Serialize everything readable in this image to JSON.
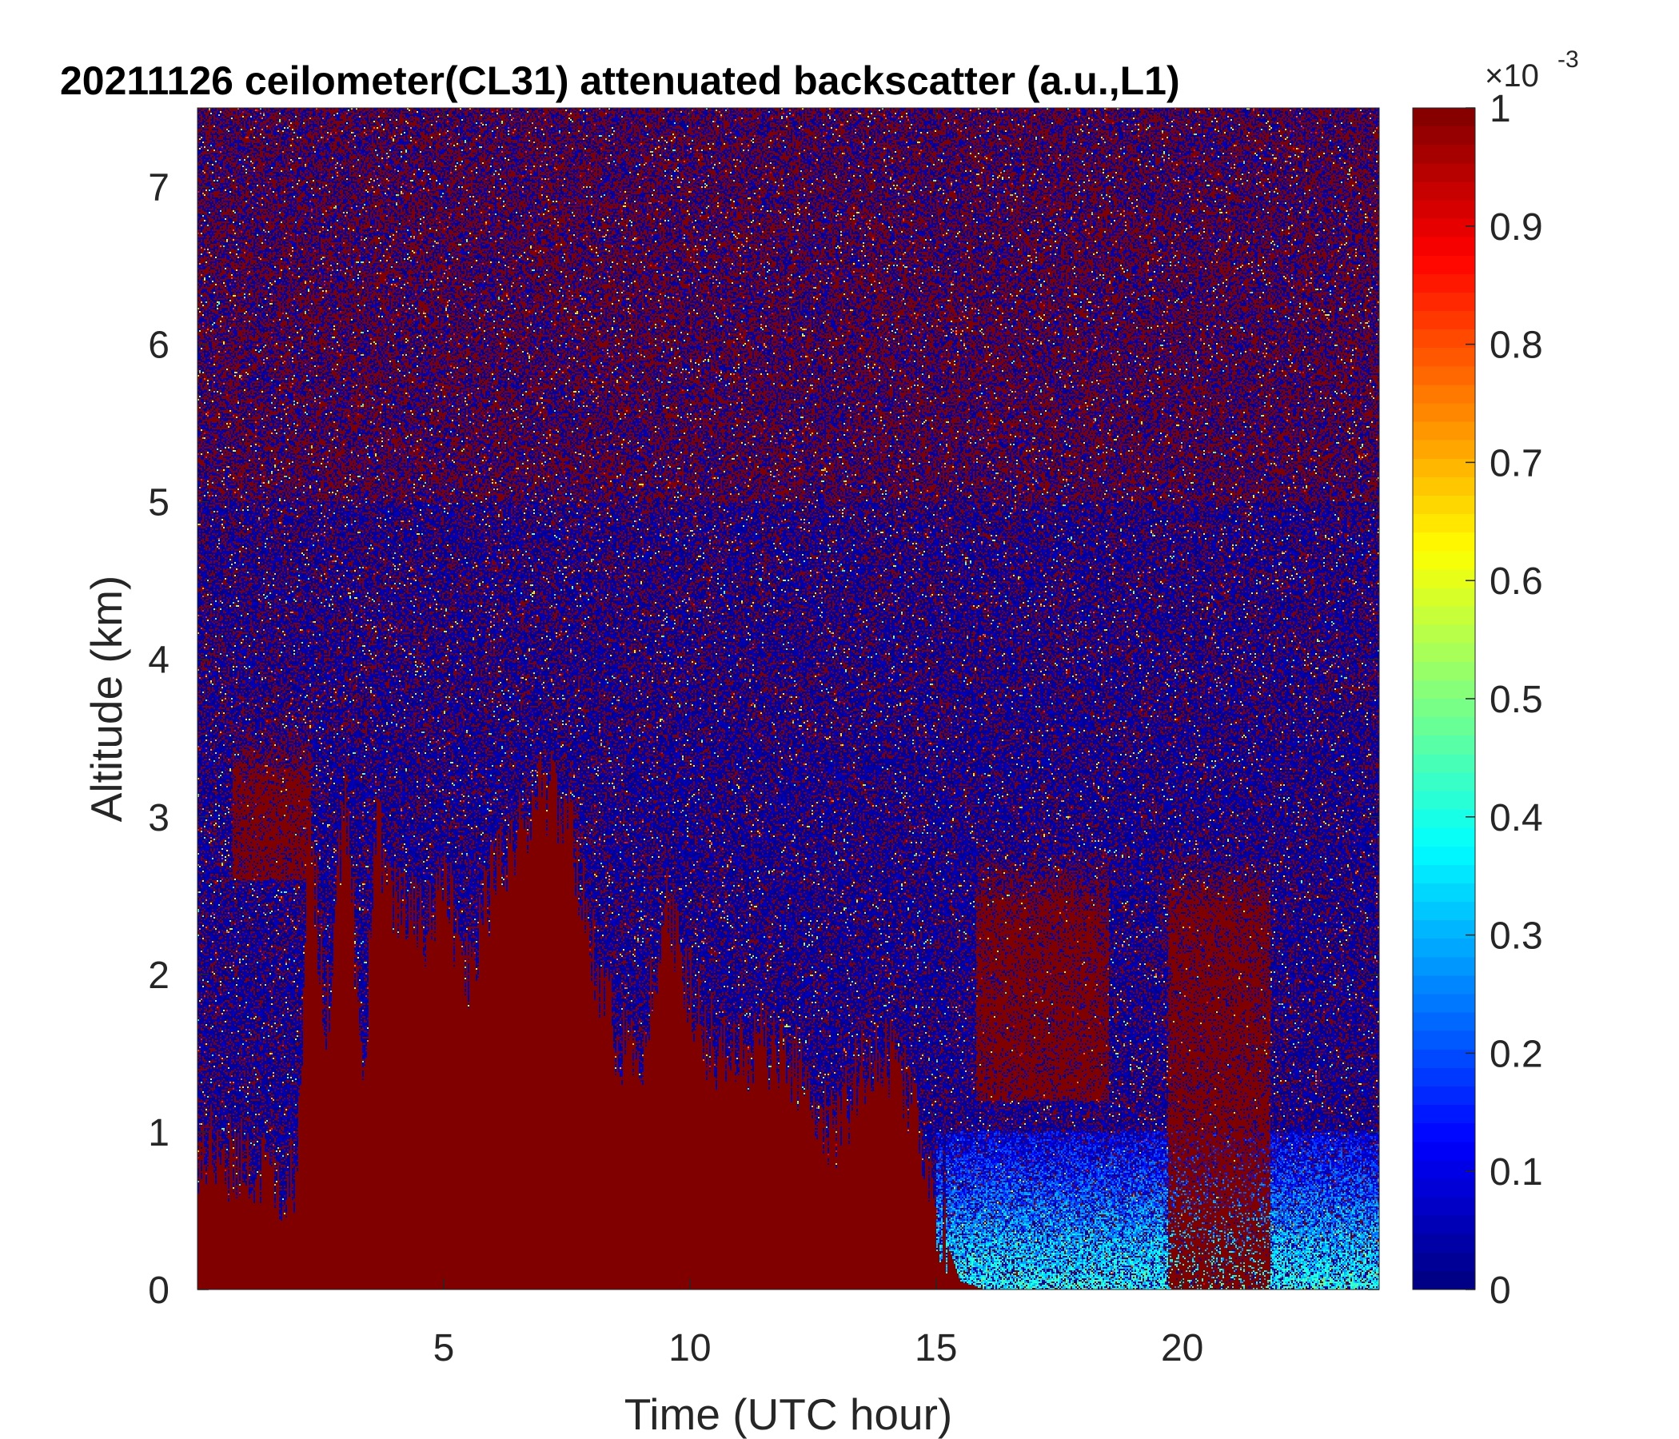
{
  "chart_data": {
    "type": "heatmap",
    "title": "20211126 ceilometer(CL31) attenuated backscatter (a.u.,L1)",
    "xlabel": "Time (UTC hour)",
    "ylabel": "Altitude (km)",
    "xlim": [
      0,
      24
    ],
    "ylim": [
      0,
      7.5
    ],
    "xticks": [
      5,
      10,
      15,
      20
    ],
    "yticks": [
      0,
      1,
      2,
      3,
      4,
      5,
      6,
      7
    ],
    "grid": false,
    "colormap": "jet",
    "colorbar": {
      "clim": [
        0,
        1
      ],
      "ticks": [
        0,
        0.1,
        0.2,
        0.3,
        0.4,
        0.5,
        0.6,
        0.7,
        0.8,
        0.9,
        1
      ],
      "tick_labels": [
        "0",
        "0.1",
        "0.2",
        "0.3",
        "0.4",
        "0.5",
        "0.6",
        "0.7",
        "0.8",
        "0.9",
        "1"
      ],
      "exponent_base": "×10",
      "exponent_power": "-3"
    },
    "cloud_tops_km": [
      [
        0.0,
        0.9
      ],
      [
        1.0,
        0.8
      ],
      [
        2.0,
        0.7
      ],
      [
        2.3,
        3.0
      ],
      [
        2.6,
        1.6
      ],
      [
        3.0,
        3.2
      ],
      [
        3.4,
        1.2
      ],
      [
        3.6,
        3.0
      ],
      [
        4.0,
        2.5
      ],
      [
        4.6,
        2.3
      ],
      [
        5.0,
        2.6
      ],
      [
        5.5,
        2.0
      ],
      [
        6.0,
        2.6
      ],
      [
        6.5,
        2.9
      ],
      [
        7.0,
        3.2
      ],
      [
        7.5,
        3.0
      ],
      [
        8.0,
        2.2
      ],
      [
        8.5,
        1.6
      ],
      [
        9.0,
        1.5
      ],
      [
        9.5,
        2.5
      ],
      [
        10.0,
        1.9
      ],
      [
        10.5,
        1.5
      ],
      [
        11.0,
        1.5
      ],
      [
        11.5,
        1.6
      ],
      [
        12.0,
        1.4
      ],
      [
        12.5,
        1.2
      ],
      [
        13.0,
        1.0
      ],
      [
        13.5,
        1.4
      ],
      [
        14.0,
        1.5
      ],
      [
        14.5,
        1.2
      ],
      [
        15.0,
        0.5
      ],
      [
        15.5,
        0.05
      ],
      [
        16.0,
        0.0
      ],
      [
        24.0,
        0.0
      ]
    ],
    "upper_cloud_layers": [
      {
        "start": 0.7,
        "end": 2.3,
        "base_km": 2.6,
        "top_km": 3.4
      },
      {
        "start": 15.8,
        "end": 18.5,
        "base_km": 1.2,
        "top_km": 2.6
      },
      {
        "start": 19.7,
        "end": 21.8,
        "base_km": 0.0,
        "top_km": 2.6
      }
    ]
  }
}
